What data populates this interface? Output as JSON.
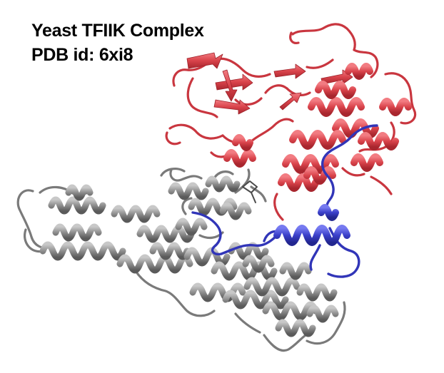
{
  "caption": {
    "title": "Yeast TFIIK Complex",
    "pdb_label": "PDB id: 6xi8"
  },
  "chains": {
    "red": {
      "color": "#d9434b",
      "shade": "#b22a33",
      "highlight": "#f07b80"
    },
    "gray": {
      "color": "#8c8c8c",
      "shade": "#5e5e5e",
      "highlight": "#c4c4c4"
    },
    "blue": {
      "color": "#3a3fc9",
      "shade": "#23279a",
      "highlight": "#6f73ee"
    }
  }
}
